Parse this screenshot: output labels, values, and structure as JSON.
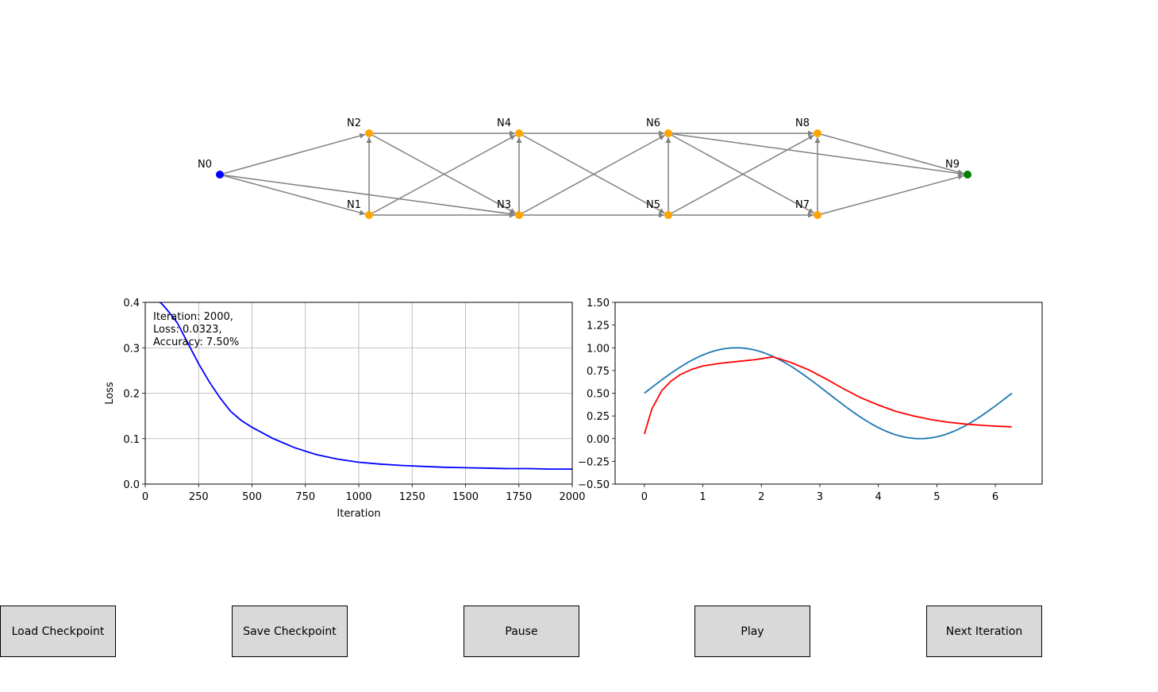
{
  "graph": {
    "nodes": [
      {
        "id": "N0",
        "color": "blue"
      },
      {
        "id": "N1",
        "color": "orange"
      },
      {
        "id": "N2",
        "color": "orange"
      },
      {
        "id": "N3",
        "color": "orange"
      },
      {
        "id": "N4",
        "color": "orange"
      },
      {
        "id": "N5",
        "color": "orange"
      },
      {
        "id": "N6",
        "color": "orange"
      },
      {
        "id": "N7",
        "color": "orange"
      },
      {
        "id": "N8",
        "color": "orange"
      },
      {
        "id": "N9",
        "color": "green"
      }
    ],
    "edges": [
      [
        "N0",
        "N1"
      ],
      [
        "N0",
        "N2"
      ],
      [
        "N0",
        "N3"
      ],
      [
        "N1",
        "N2"
      ],
      [
        "N1",
        "N3"
      ],
      [
        "N1",
        "N4"
      ],
      [
        "N2",
        "N3"
      ],
      [
        "N2",
        "N4"
      ],
      [
        "N3",
        "N4"
      ],
      [
        "N3",
        "N5"
      ],
      [
        "N3",
        "N6"
      ],
      [
        "N4",
        "N5"
      ],
      [
        "N4",
        "N6"
      ],
      [
        "N5",
        "N6"
      ],
      [
        "N5",
        "N7"
      ],
      [
        "N5",
        "N8"
      ],
      [
        "N6",
        "N7"
      ],
      [
        "N6",
        "N8"
      ],
      [
        "N6",
        "N9"
      ],
      [
        "N7",
        "N8"
      ],
      [
        "N7",
        "N9"
      ],
      [
        "N8",
        "N9"
      ]
    ],
    "edge_color": "#808080"
  },
  "chart_data": [
    {
      "type": "line",
      "xlabel": "Iteration",
      "ylabel": "Loss",
      "xlim": [
        0,
        2000
      ],
      "ylim": [
        0,
        0.4
      ],
      "xticks": [
        "0",
        "250",
        "500",
        "750",
        "1000",
        "1250",
        "1500",
        "1750",
        "2000"
      ],
      "yticks": [
        "0.0",
        "0.1",
        "0.2",
        "0.3",
        "0.4"
      ],
      "grid": true,
      "series": [
        {
          "color": "#0000ff",
          "x": [
            0,
            50,
            75,
            100,
            150,
            200,
            250,
            300,
            350,
            400,
            450,
            500,
            600,
            700,
            800,
            900,
            1000,
            1100,
            1200,
            1300,
            1400,
            1500,
            1600,
            1700,
            1800,
            1900,
            2000
          ],
          "y": [
            0.415,
            0.405,
            0.398,
            0.385,
            0.355,
            0.31,
            0.265,
            0.225,
            0.19,
            0.16,
            0.14,
            0.125,
            0.1,
            0.08,
            0.065,
            0.055,
            0.048,
            0.044,
            0.041,
            0.039,
            0.037,
            0.036,
            0.035,
            0.034,
            0.034,
            0.033,
            0.033
          ]
        }
      ],
      "annotation": [
        "Iteration: 2000,",
        "Loss: 0.0323,",
        "Accuracy: 7.50%"
      ]
    },
    {
      "type": "line",
      "xlim": [
        -0.5,
        6.8
      ],
      "ylim": [
        -0.5,
        1.5
      ],
      "xticks": [
        "0",
        "1",
        "2",
        "3",
        "4",
        "5",
        "6"
      ],
      "yticks": [
        "−0.50",
        "−0.25",
        "0.00",
        "0.25",
        "0.50",
        "0.75",
        "1.00",
        "1.25",
        "1.50"
      ],
      "grid": false,
      "series": [
        {
          "color": "#1f77b4",
          "function": "0.5 + 0.5*sin(x)",
          "x_range": [
            0,
            6.283
          ]
        },
        {
          "color": "#ff0000",
          "x": [
            0,
            0.13,
            0.3,
            0.45,
            0.6,
            0.8,
            1.0,
            1.3,
            1.6,
            1.9,
            2.2,
            2.5,
            2.8,
            3.1,
            3.4,
            3.7,
            4.0,
            4.3,
            4.6,
            4.9,
            5.2,
            5.5,
            5.8,
            6.1,
            6.28
          ],
          "y": [
            0.05,
            0.33,
            0.53,
            0.63,
            0.7,
            0.76,
            0.8,
            0.83,
            0.85,
            0.87,
            0.9,
            0.84,
            0.76,
            0.66,
            0.55,
            0.45,
            0.37,
            0.3,
            0.25,
            0.21,
            0.18,
            0.16,
            0.145,
            0.135,
            0.13
          ]
        }
      ]
    }
  ],
  "buttons": {
    "load": "Load Checkpoint",
    "save": "Save Checkpoint",
    "pause": "Pause",
    "play": "Play",
    "next": "Next Iteration"
  }
}
